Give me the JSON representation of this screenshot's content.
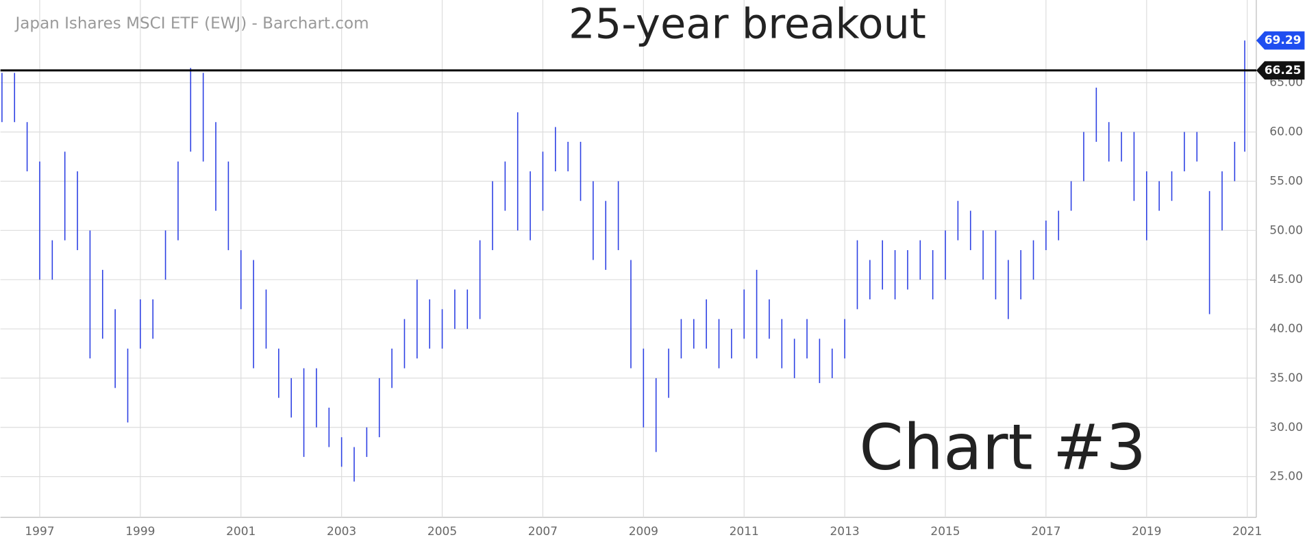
{
  "chart_data": {
    "type": "ohlc",
    "title": "Japan Ishares MSCI ETF (EWJ) - Barchart.com",
    "annotations": [
      "25-year breakout",
      "Chart #3"
    ],
    "reference_line": 66.25,
    "last_price": 69.29,
    "color": "#2b3fe3",
    "grid": true,
    "xlim": [
      1996.22,
      2021.18
    ],
    "xticks": [
      1997,
      1999,
      2001,
      2003,
      2005,
      2007,
      2009,
      2011,
      2013,
      2015,
      2017,
      2019,
      2021
    ],
    "ylim": [
      20.86,
      73.4
    ],
    "yticks": [
      {
        "value": 25,
        "label": "25.00"
      },
      {
        "value": 30,
        "label": "30.00"
      },
      {
        "value": 35,
        "label": "35.00"
      },
      {
        "value": 40,
        "label": "40.00"
      },
      {
        "value": 45,
        "label": "45.00"
      },
      {
        "value": 50,
        "label": "50.00"
      },
      {
        "value": 55,
        "label": "55.00"
      },
      {
        "value": 60,
        "label": "60.00"
      },
      {
        "value": 65,
        "label": "65.00"
      }
    ],
    "x": [
      1996.25,
      1996.5,
      1996.75,
      1997.0,
      1997.25,
      1997.5,
      1997.75,
      1998.0,
      1998.25,
      1998.5,
      1998.75,
      1999.0,
      1999.25,
      1999.5,
      1999.75,
      2000.0,
      2000.25,
      2000.5,
      2000.75,
      2001.0,
      2001.25,
      2001.5,
      2001.75,
      2002.0,
      2002.25,
      2002.5,
      2002.75,
      2003.0,
      2003.25,
      2003.5,
      2003.75,
      2004.0,
      2004.25,
      2004.5,
      2004.75,
      2005.0,
      2005.25,
      2005.5,
      2005.75,
      2006.0,
      2006.25,
      2006.5,
      2006.75,
      2007.0,
      2007.25,
      2007.5,
      2007.75,
      2008.0,
      2008.25,
      2008.5,
      2008.75,
      2009.0,
      2009.25,
      2009.5,
      2009.75,
      2010.0,
      2010.25,
      2010.5,
      2010.75,
      2011.0,
      2011.25,
      2011.5,
      2011.75,
      2012.0,
      2012.25,
      2012.5,
      2012.75,
      2013.0,
      2013.25,
      2013.5,
      2013.75,
      2014.0,
      2014.25,
      2014.5,
      2014.75,
      2015.0,
      2015.25,
      2015.5,
      2015.75,
      2016.0,
      2016.25,
      2016.5,
      2016.75,
      2017.0,
      2017.25,
      2017.5,
      2017.75,
      2018.0,
      2018.25,
      2018.5,
      2018.75,
      2019.0,
      2019.25,
      2019.5,
      2019.75,
      2020.0,
      2020.25,
      2020.5,
      2020.75,
      2020.95
    ],
    "high": [
      66,
      66,
      61,
      57,
      49,
      58,
      56,
      50,
      46,
      42,
      38,
      43,
      43,
      50,
      57,
      66.5,
      66,
      61,
      57,
      48,
      47,
      44,
      38,
      35,
      36,
      36,
      32,
      29,
      28,
      30,
      35,
      38,
      41,
      45,
      43,
      42,
      44,
      44,
      49,
      55,
      57,
      62,
      56,
      58,
      60.5,
      59,
      59,
      55,
      53,
      55,
      47,
      38,
      35,
      38,
      41,
      41,
      43,
      41,
      40,
      44,
      46,
      43,
      41,
      39,
      41,
      39,
      38,
      41,
      49,
      47,
      49,
      48,
      48,
      49,
      48,
      50,
      53,
      52,
      50,
      50,
      47,
      48,
      49,
      51,
      52,
      55,
      60,
      64.5,
      61,
      60,
      60,
      56,
      55,
      56,
      60,
      60,
      54,
      56,
      59,
      69.29
    ],
    "low": [
      61,
      61,
      56,
      45,
      45,
      49,
      48,
      37,
      39,
      34,
      30.5,
      38,
      39,
      45,
      49,
      58,
      57,
      52,
      48,
      42,
      36,
      38,
      33,
      31,
      27,
      30,
      28,
      26,
      24.5,
      27,
      29,
      34,
      36,
      37,
      38,
      38,
      40,
      40,
      41,
      48,
      52,
      50,
      49,
      52,
      56,
      56,
      53,
      47,
      46,
      48,
      36,
      30,
      27.5,
      33,
      37,
      38,
      38,
      36,
      37,
      39,
      37,
      39,
      36,
      35,
      37,
      34.5,
      35,
      37,
      42,
      43,
      44,
      43,
      44,
      45,
      43,
      45,
      49,
      48,
      45,
      43,
      41,
      43,
      45,
      48,
      49,
      52,
      55,
      59,
      57,
      57,
      53,
      49,
      52,
      53,
      56,
      57,
      41.5,
      50,
      55,
      58
    ]
  }
}
